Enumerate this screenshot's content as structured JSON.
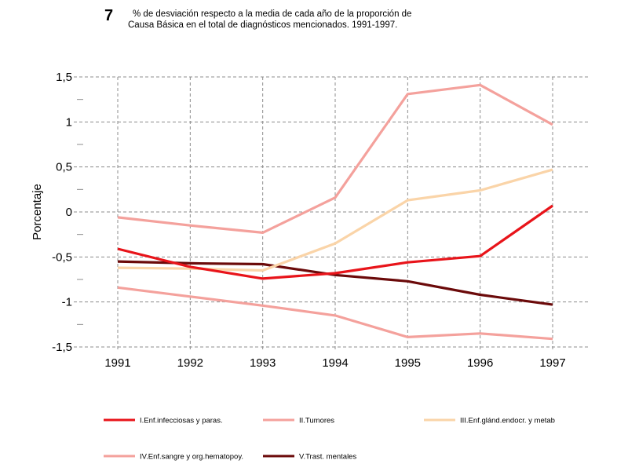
{
  "figure_number": "7",
  "chart_data": {
    "type": "line",
    "title_lines": [
      "% de desviación respecto a la  media de  cada  año de la proporción de",
      "Causa Básica en el total de  diagnósticos mencionados. 1991-1997."
    ],
    "ylabel": "Porcentaje",
    "xlabel": "",
    "x": [
      "1991",
      "1992",
      "1993",
      "1994",
      "1995",
      "1996",
      "1997"
    ],
    "ylim": [
      -1.5,
      1.5
    ],
    "yticks": [
      -1.5,
      -1,
      -0.5,
      0,
      0.5,
      1,
      1.5
    ],
    "ytick_labels": [
      "-1,5",
      "-1",
      "-0,5",
      "0",
      "0,5",
      "1",
      "1,5"
    ],
    "grid": true,
    "legend_position": "bottom",
    "series": [
      {
        "name": "I.Enf.infecciosas y paras.",
        "color": "#e8141a",
        "values": [
          -0.41,
          -0.61,
          -0.74,
          -0.68,
          -0.56,
          -0.49,
          0.07
        ]
      },
      {
        "name": "II.Tumores",
        "color": "#f4a19c",
        "values": [
          -0.06,
          -0.15,
          -0.23,
          0.16,
          1.31,
          1.41,
          0.97
        ]
      },
      {
        "name": "III.Enf.glánd.endocr. y metab",
        "color": "#fad4a8",
        "values": [
          -0.62,
          -0.63,
          -0.65,
          -0.35,
          0.13,
          0.24,
          0.47
        ]
      },
      {
        "name": "IV.Enf.sangre y org.hematopoy.",
        "color": "#f4a19c",
        "values": [
          -0.84,
          -0.94,
          -1.04,
          -1.15,
          -1.39,
          -1.35,
          -1.41
        ]
      },
      {
        "name": "V.Trast. mentales",
        "color": "#6b0a0a",
        "values": [
          -0.55,
          -0.57,
          -0.58,
          -0.7,
          -0.77,
          -0.92,
          -1.03
        ]
      }
    ]
  }
}
